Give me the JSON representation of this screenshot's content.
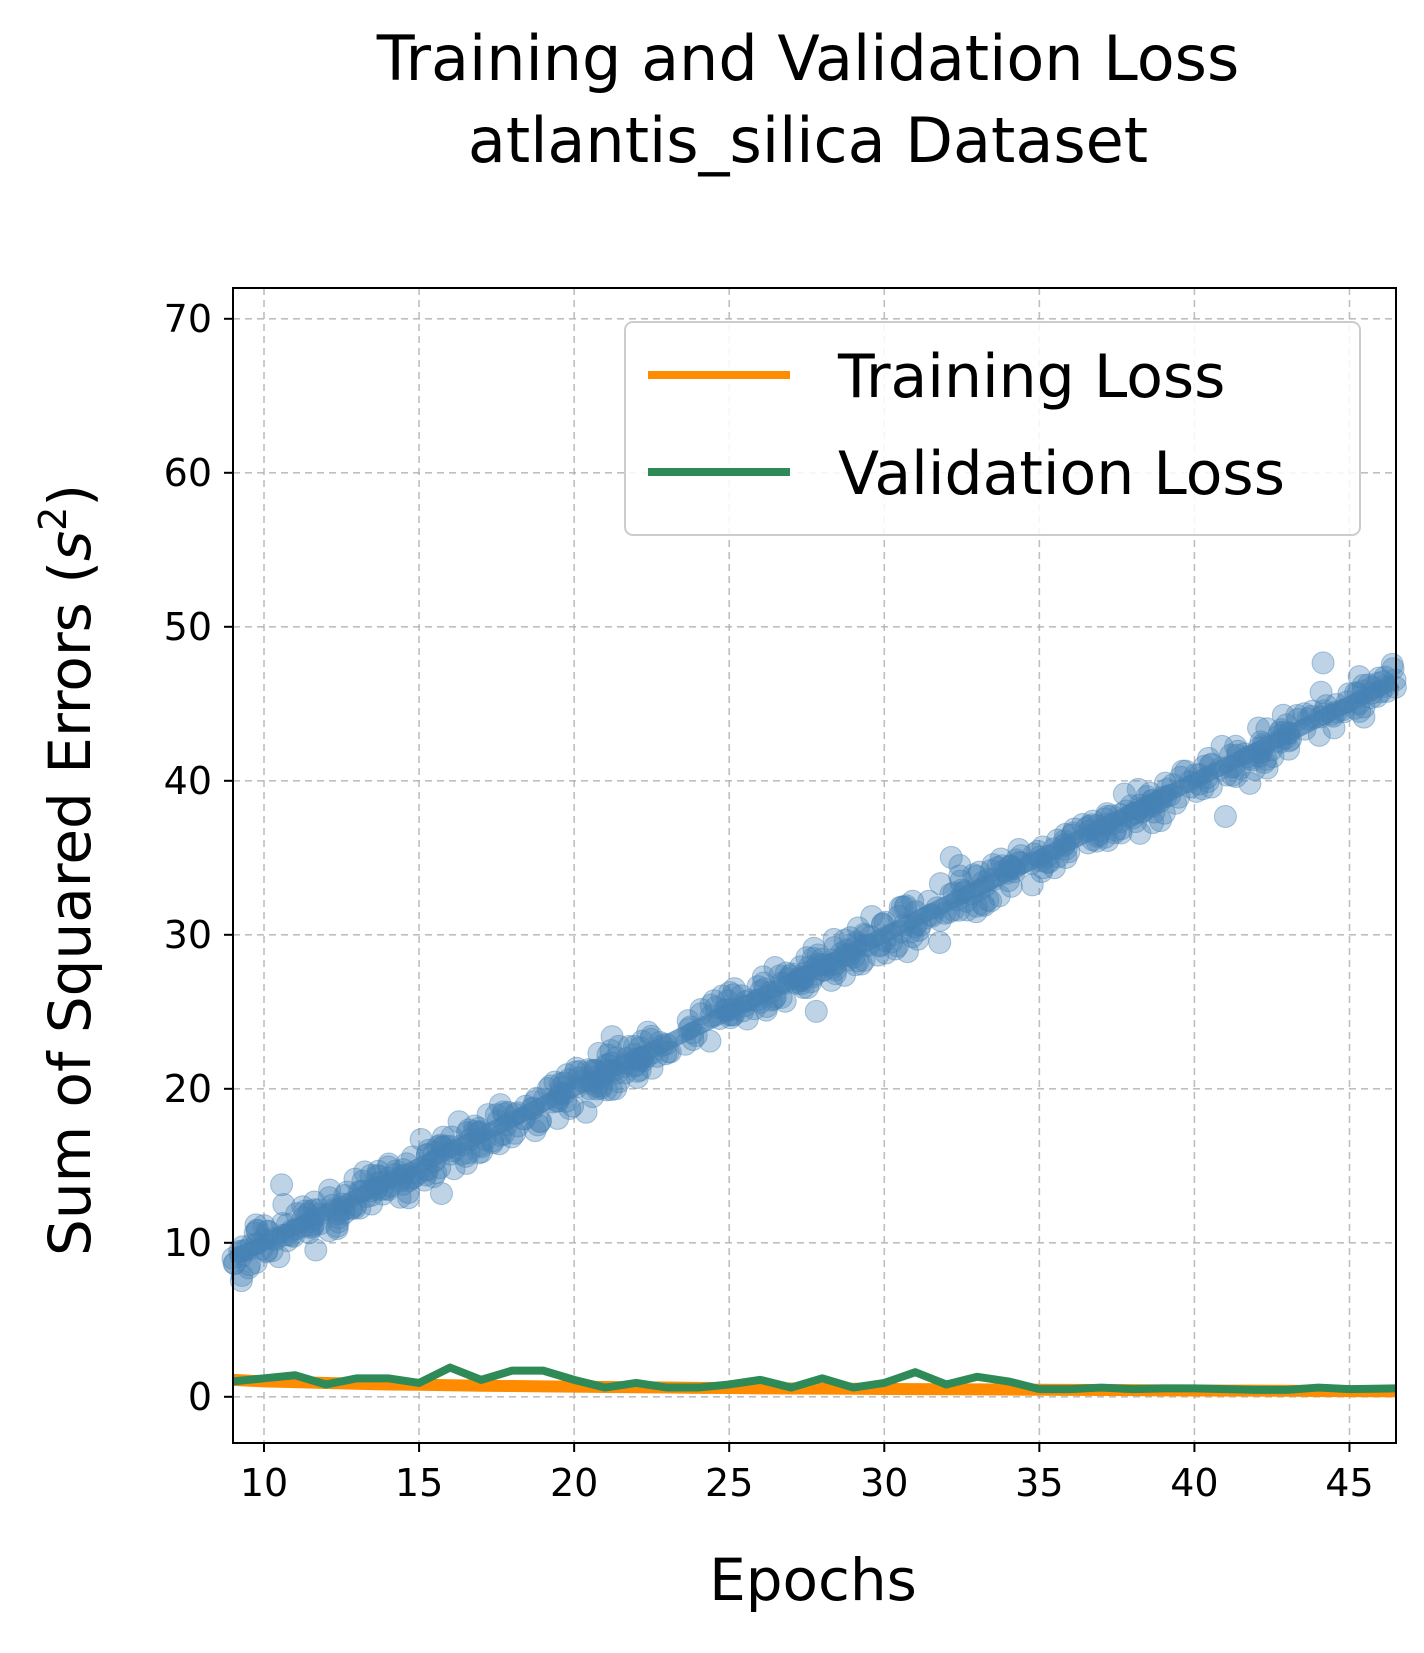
{
  "chart_data": {
    "type": "line",
    "title": "Training and Validation Loss",
    "subtitle": "atlantis_silica Dataset",
    "xlabel": "Epochs",
    "ylabel_main": "Sum of Squared Errors (",
    "ylabel_var": "s",
    "ylabel_exp": "2",
    "ylabel_close": ")",
    "xlim": [
      9,
      46.5
    ],
    "ylim": [
      -3,
      72
    ],
    "x_ticks": [
      10,
      15,
      20,
      25,
      30,
      35,
      40,
      45
    ],
    "y_ticks": [
      0,
      10,
      20,
      30,
      40,
      50,
      60,
      70
    ],
    "grid": true,
    "legend_position": "top-right",
    "series": [
      {
        "name": "Training Loss",
        "color": "#ff8c00",
        "x": [
          9,
          10,
          11,
          12,
          13,
          14,
          15,
          16,
          17,
          18,
          19,
          20,
          21,
          22,
          23,
          24,
          25,
          26,
          27,
          28,
          29,
          30,
          31,
          32,
          33,
          34,
          35,
          36,
          37,
          38,
          39,
          40,
          41,
          42,
          43,
          44,
          45,
          46.5
        ],
        "y": [
          1.1,
          1.0,
          0.95,
          0.9,
          0.85,
          0.8,
          0.78,
          0.75,
          0.72,
          0.7,
          0.68,
          0.66,
          0.64,
          0.62,
          0.6,
          0.58,
          0.57,
          0.55,
          0.54,
          0.53,
          0.52,
          0.51,
          0.5,
          0.49,
          0.48,
          0.47,
          0.46,
          0.45,
          0.44,
          0.43,
          0.42,
          0.41,
          0.4,
          0.4,
          0.39,
          0.38,
          0.37,
          0.36
        ]
      },
      {
        "name": "Validation Loss",
        "color": "#2e8b57",
        "x": [
          9,
          10,
          11,
          12,
          13,
          14,
          15,
          16,
          17,
          18,
          19,
          20,
          21,
          22,
          23,
          24,
          25,
          26,
          27,
          28,
          29,
          30,
          31,
          32,
          33,
          34,
          35,
          36,
          37,
          38,
          39,
          40,
          41,
          42,
          43,
          44,
          45,
          46.5
        ],
        "y": [
          1.0,
          1.2,
          1.4,
          0.8,
          1.2,
          1.2,
          0.9,
          1.9,
          1.1,
          1.7,
          1.7,
          1.1,
          0.6,
          0.9,
          0.6,
          0.6,
          0.8,
          1.1,
          0.6,
          1.2,
          0.6,
          0.9,
          1.6,
          0.8,
          1.3,
          1.0,
          0.5,
          0.5,
          0.6,
          0.5,
          0.55,
          0.55,
          0.5,
          0.45,
          0.45,
          0.6,
          0.5,
          0.55
        ]
      }
    ],
    "scatter": {
      "color": "#4682b4",
      "x_range": [
        9,
        46.5
      ],
      "trend": {
        "x": [
          9,
          46.5
        ],
        "y": [
          9.0,
          46.5
        ]
      }
    }
  }
}
